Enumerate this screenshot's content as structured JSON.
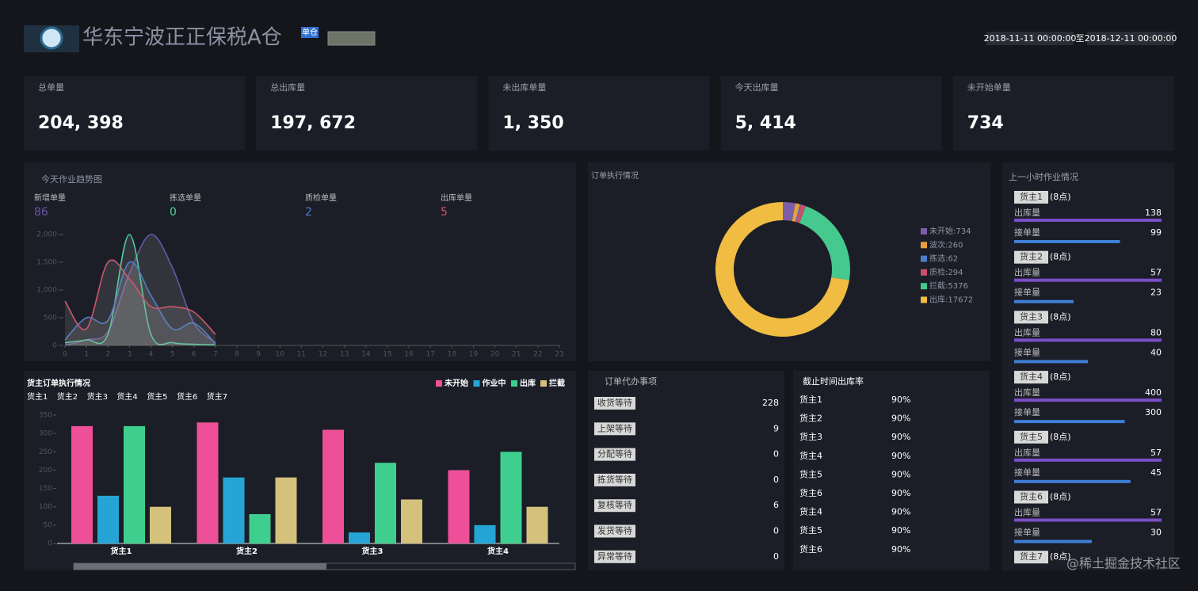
{
  "header": {
    "title": "华东宁波正正保税A仓",
    "badge": "单仓",
    "date_from": "2018-11-11 00:00:00",
    "date_sep": "至",
    "date_to": "2018-12-11 00:00:00"
  },
  "kpis": [
    {
      "label": "总单量",
      "value": "204, 398"
    },
    {
      "label": "总出库量",
      "value": "197, 672"
    },
    {
      "label": "未出库单量",
      "value": "1, 350"
    },
    {
      "label": "今天出库量",
      "value": "5, 414"
    },
    {
      "label": "未开始单量",
      "value": "734"
    }
  ],
  "chart_data": [
    {
      "type": "line",
      "title": "今天作业趋势图",
      "x": [
        0,
        1,
        2,
        3,
        4,
        5,
        6,
        7
      ],
      "xlim": [
        0,
        23
      ],
      "xticks": [
        0,
        1,
        2,
        3,
        4,
        5,
        6,
        7,
        8,
        9,
        10,
        11,
        12,
        13,
        14,
        15,
        16,
        17,
        18,
        19,
        20,
        21,
        22,
        23
      ],
      "ylim": [
        0,
        2000
      ],
      "yticks": [
        0,
        500,
        {
          "value": 1000,
          "label": "1,000"
        },
        {
          "value": 1500,
          "label": "1,500"
        },
        {
          "value": 2000,
          "label": "2,000"
        }
      ],
      "series": [
        {
          "name": "新增单量",
          "color": "#6a55a8",
          "values": [
            0,
            100,
            250,
            1300,
            2000,
            1400,
            400,
            50
          ]
        },
        {
          "name": "拣选单量",
          "color": "#4fd1a0",
          "values": [
            50,
            100,
            200,
            2000,
            200,
            50,
            20,
            10
          ]
        },
        {
          "name": "质检单量",
          "color": "#4d7cc9",
          "values": [
            100,
            500,
            450,
            1500,
            900,
            300,
            400,
            30
          ]
        },
        {
          "name": "出库单量",
          "color": "#d0566e",
          "values": [
            800,
            300,
            1500,
            1200,
            700,
            700,
            600,
            200
          ]
        }
      ],
      "stats": [
        86,
        0,
        2,
        5
      ]
    },
    {
      "type": "pie",
      "title": "订单执行情况",
      "values": [
        734,
        260,
        62,
        294,
        5376,
        17672
      ],
      "value_labels": [
        "未开始:734",
        "波次:260",
        "拣选:62",
        "质检:294",
        "拦截:5376",
        "出库:17672"
      ],
      "colors": [
        "#7b5ea7",
        "#e8a13a",
        "#4d7cc9",
        "#c9506a",
        "#45c98e",
        "#f0bc42"
      ]
    },
    {
      "type": "bar",
      "title": "货主订单执行情况",
      "owners": [
        "货主1",
        "货主2",
        "货主3",
        "货主4",
        "货主5",
        "货主6",
        "货主7"
      ],
      "categories": [
        "货主1",
        "货主2",
        "货主3",
        "货主4"
      ],
      "ylim": [
        0,
        350
      ],
      "yticks": [
        0,
        50,
        100,
        150,
        200,
        250,
        300,
        350
      ],
      "series": [
        {
          "name": "未开始",
          "color": "#ee4f98",
          "values": [
            320,
            330,
            310,
            200
          ]
        },
        {
          "name": "作业中",
          "color": "#25a5d6",
          "values": [
            130,
            180,
            30,
            50
          ]
        },
        {
          "name": "出库",
          "color": "#3ecf8e",
          "values": [
            320,
            80,
            220,
            250
          ]
        },
        {
          "name": "拦截",
          "color": "#d4c17c",
          "values": [
            100,
            180,
            120,
            100
          ]
        }
      ]
    }
  ],
  "todo": {
    "title": "订单代办事项",
    "rows": [
      {
        "label": "收货等待",
        "value": 228
      },
      {
        "label": "上架等待",
        "value": 9
      },
      {
        "label": "分配等待",
        "value": 0
      },
      {
        "label": "拣货等待",
        "value": 0
      },
      {
        "label": "复核等待",
        "value": 6
      },
      {
        "label": "发货等待",
        "value": 0
      },
      {
        "label": "异常等待",
        "value": 0
      }
    ]
  },
  "rate": {
    "title": "截止时间出库率",
    "rows": [
      {
        "owner": "货主1",
        "value": "90%"
      },
      {
        "owner": "货主2",
        "value": "90%"
      },
      {
        "owner": "货主3",
        "value": "90%"
      },
      {
        "owner": "货主4",
        "value": "90%"
      },
      {
        "owner": "货主5",
        "value": "90%"
      },
      {
        "owner": "货主6",
        "value": "90%"
      },
      {
        "owner": "货主4",
        "value": "90%"
      },
      {
        "owner": "货主5",
        "value": "90%"
      },
      {
        "owner": "货主6",
        "value": "90%"
      }
    ]
  },
  "hourly": {
    "title": "上一小时作业情况",
    "metric_labels": [
      "出库量",
      "接单量"
    ],
    "groups": [
      {
        "owner": "货主1",
        "hour": "(8点)",
        "out": 138,
        "accept": 99
      },
      {
        "owner": "货主2",
        "hour": "(8点)",
        "out": 57,
        "accept": 23
      },
      {
        "owner": "货主3",
        "hour": "(8点)",
        "out": 80,
        "accept": 40
      },
      {
        "owner": "货主4",
        "hour": "(8点)",
        "out": 400,
        "accept": 300
      },
      {
        "owner": "货主5",
        "hour": "(8点)",
        "out": 57,
        "accept": 45
      },
      {
        "owner": "货主6",
        "hour": "(8点)",
        "out": 57,
        "accept": 30
      },
      {
        "owner": "货主7",
        "hour": "(8点)"
      }
    ]
  },
  "watermark": "@稀土掘金技术社区"
}
